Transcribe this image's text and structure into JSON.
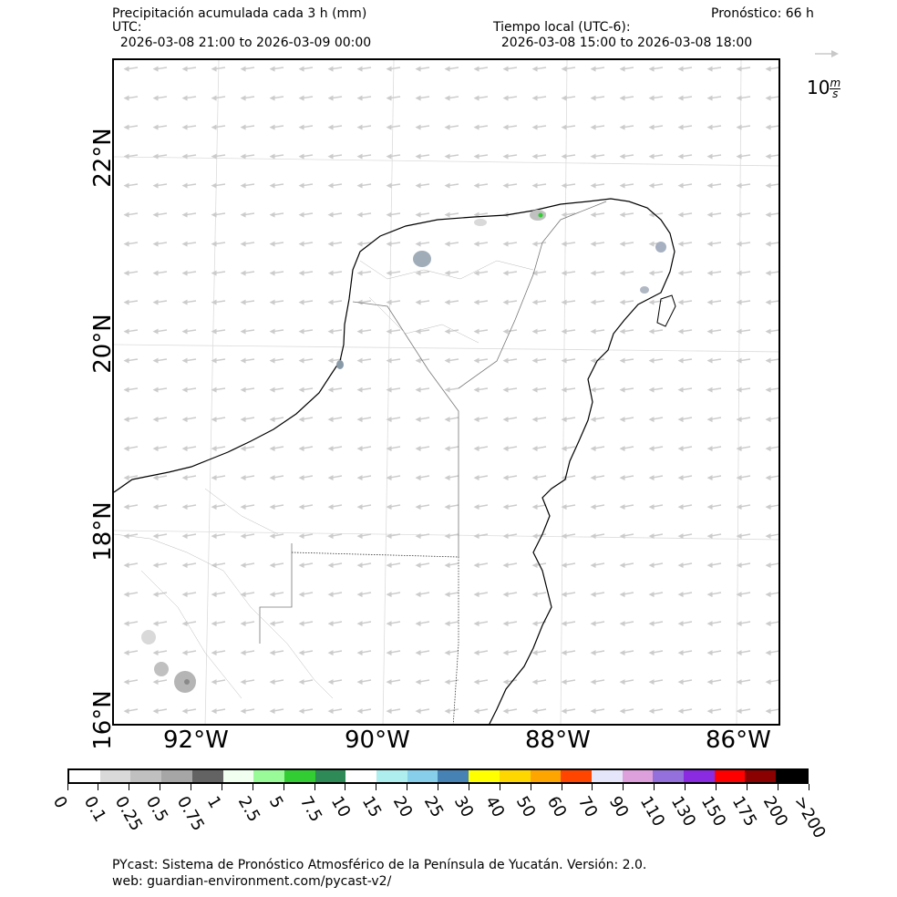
{
  "header": {
    "title": "Precipitación acumulada cada 3 h (mm)",
    "utc_label": "UTC:",
    "utc_range": "  2026-03-08 21:00 to 2026-03-09 00:00",
    "local_label": "Tiempo local (UTC-6):",
    "local_range": "  2026-03-08 15:00 to 2026-03-08 18:00",
    "forecast": "Pronóstico: 66 h"
  },
  "wind_reference": {
    "value": "10",
    "unit_num": "m",
    "unit_den": "s"
  },
  "axes": {
    "lat_labels": [
      "22°N",
      "20°N",
      "18°N",
      "16°N"
    ],
    "lon_labels": [
      "92°W",
      "90°W",
      "88°W",
      "86°W"
    ]
  },
  "colorbar": {
    "colors": [
      "#ffffff",
      "#d9d9d9",
      "#c0c0c0",
      "#a6a6a6",
      "#636363",
      "#f0fff0",
      "#98fb98",
      "#32cd32",
      "#2e8b57",
      "#ffffff",
      "#afeeee",
      "#87ceeb",
      "#4682b4",
      "#ffff00",
      "#ffd700",
      "#ffa500",
      "#ff4500",
      "#e6e6fa",
      "#dda0dd",
      "#9370db",
      "#8a2be2",
      "#ff0000",
      "#8b0000",
      "#000000"
    ],
    "labels": [
      "0",
      "0.1",
      "0.25",
      "0.5",
      "0.75",
      "1",
      "2.5",
      "5",
      "7.5",
      "10",
      "15",
      "20",
      "25",
      "30",
      "40",
      "50",
      "60",
      "70",
      "90",
      "110",
      "130",
      "150",
      "175",
      "200",
      ">200"
    ]
  },
  "footer": {
    "line1": "PYcast: Sistema de Pronóstico Atmosférico de la Península de Yucatán. Versión: 2.0.",
    "line2": "web: guardian-environment.com/pycast-v2/"
  }
}
